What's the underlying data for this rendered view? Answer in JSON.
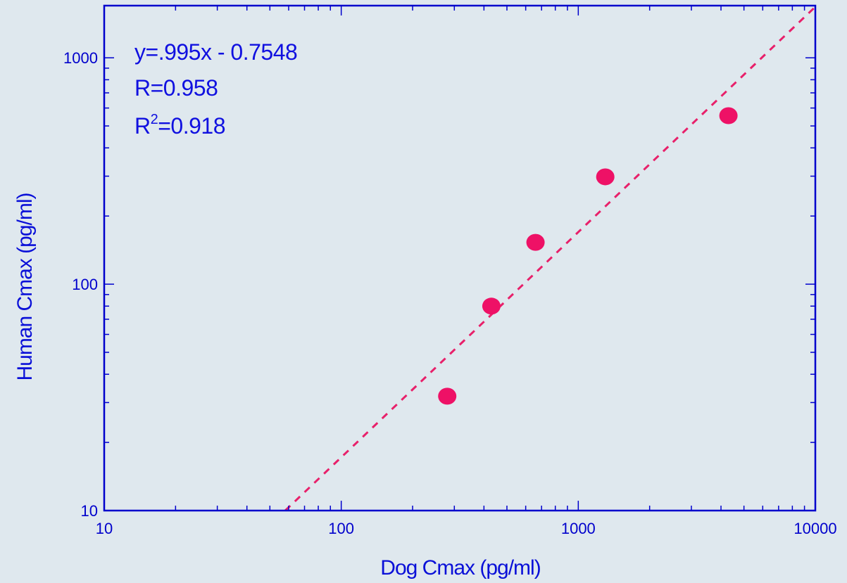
{
  "chart_data": {
    "type": "scatter",
    "xlabel": "Dog Cmax (pg/ml)",
    "ylabel": "Human Cmax (pg/ml)",
    "x_scale": "log",
    "y_scale": "log",
    "xlim": [
      10,
      10000
    ],
    "ylim": [
      10,
      1700
    ],
    "x_ticks": [
      "10",
      "100",
      "1000",
      "10000"
    ],
    "y_ticks": [
      "10",
      "100",
      "1000"
    ],
    "grid": false,
    "points": [
      {
        "x": 280,
        "y": 32
      },
      {
        "x": 430,
        "y": 80
      },
      {
        "x": 660,
        "y": 153
      },
      {
        "x": 1300,
        "y": 298
      },
      {
        "x": 4300,
        "y": 555
      }
    ],
    "fit_line": {
      "slope": 0.995,
      "intercept": -0.7548,
      "style": "dashed"
    },
    "annotations": {
      "equation": "y=.995x - 0.7548",
      "r": "R=0.958",
      "r2_prefix": "R",
      "r2_sup": "2",
      "r2_value": "=0.918"
    },
    "colors": {
      "axis": "#0000cc",
      "marker": "#ee1166",
      "fit_line": "#e8206a",
      "background": "#dfe8ee"
    }
  }
}
